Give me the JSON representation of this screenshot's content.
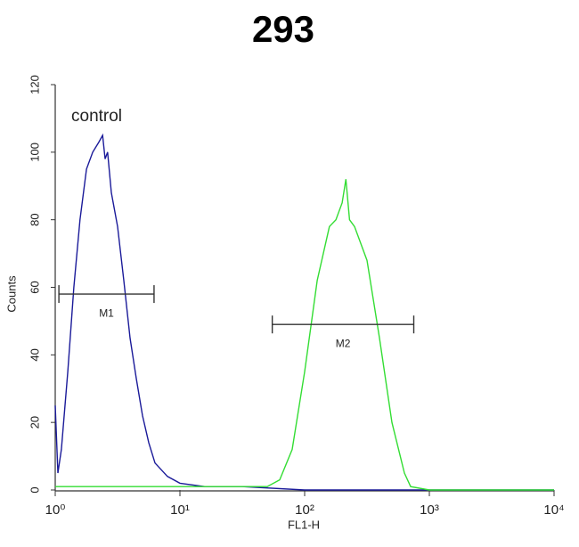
{
  "chart_data": {
    "type": "line",
    "title": "293",
    "xlabel": "FL1-H",
    "ylabel": "Counts",
    "xscale": "log",
    "xlim": [
      1,
      10000
    ],
    "ylim": [
      0,
      120
    ],
    "xticks": [
      {
        "value": 1,
        "label": "10⁰"
      },
      {
        "value": 10,
        "label": "10¹"
      },
      {
        "value": 100,
        "label": "10²"
      },
      {
        "value": 1000,
        "label": "10³"
      },
      {
        "value": 10000,
        "label": "10⁴"
      }
    ],
    "yticks": [
      0,
      20,
      40,
      60,
      80,
      100,
      120
    ],
    "series": [
      {
        "name": "control",
        "color": "#1a1a99",
        "x": [
          1,
          1.05,
          1.12,
          1.26,
          1.41,
          1.58,
          1.78,
          2.0,
          2.24,
          2.4,
          2.51,
          2.63,
          2.82,
          3.16,
          3.55,
          3.98,
          4.47,
          5.01,
          5.62,
          6.31,
          7.94,
          10,
          15.8,
          31.6,
          100,
          316,
          1000,
          10000
        ],
        "values": [
          25,
          5,
          12,
          35,
          60,
          80,
          95,
          100,
          103,
          105,
          98,
          100,
          88,
          78,
          62,
          45,
          33,
          22,
          14,
          8,
          4,
          2,
          1,
          1,
          0,
          0,
          0,
          0
        ]
      },
      {
        "color": "#33dd33",
        "x": [
          1,
          10,
          50.1,
          63.1,
          79.4,
          100,
          126,
          158,
          178,
          200,
          214,
          229,
          251,
          316,
          398,
          501,
          631,
          708,
          1000,
          10000
        ],
        "values": [
          1,
          1,
          1,
          3,
          12,
          35,
          62,
          78,
          80,
          85,
          92,
          80,
          78,
          68,
          45,
          20,
          5,
          1,
          0,
          0
        ]
      }
    ],
    "markers": [
      {
        "label": "M1",
        "x": [
          1.07,
          6.2
        ],
        "y": 58
      },
      {
        "label": "M2",
        "x": [
          55,
          750
        ],
        "y": 49
      }
    ]
  }
}
